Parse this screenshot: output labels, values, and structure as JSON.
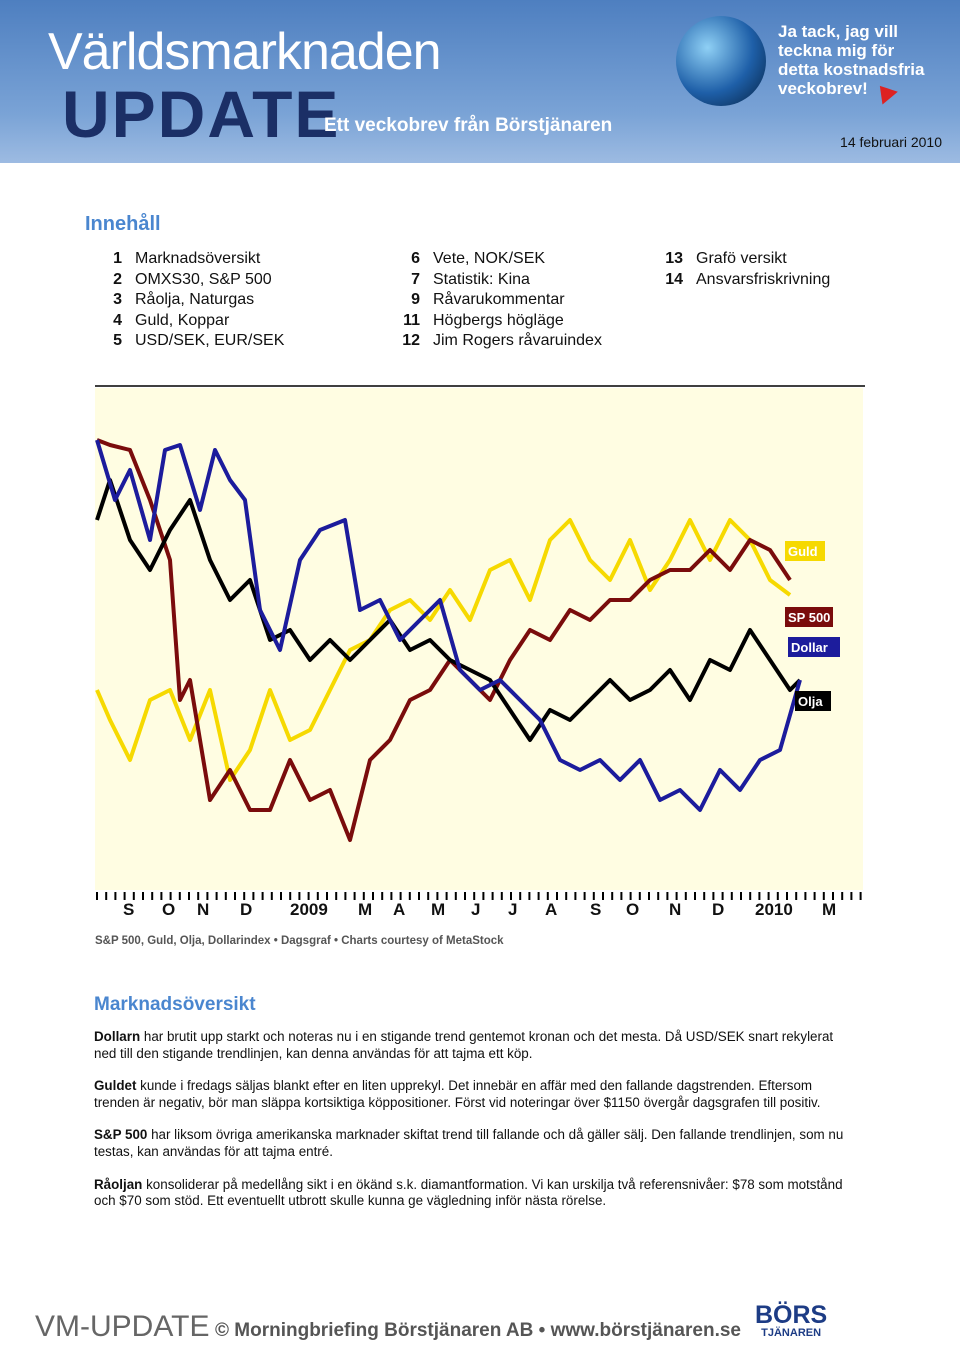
{
  "header": {
    "title": "Världsmarknaden",
    "update": "UPDATE",
    "tagline": "Ett veckobrev från Börstjänaren",
    "promo": [
      "Ja tack, jag vill",
      "teckna mig för",
      "detta kostnadsfria",
      "veckobrev!"
    ],
    "date": "14 februari 2010"
  },
  "toc": {
    "title": "Innehåll",
    "columns": [
      [
        {
          "num": 1,
          "label": "Marknadsöversikt"
        },
        {
          "num": 2,
          "label": "OMXS30, S&P 500"
        },
        {
          "num": 3,
          "label": "Råolja, Naturgas"
        },
        {
          "num": 4,
          "label": "Guld, Koppar"
        },
        {
          "num": 5,
          "label": "USD/SEK, EUR/SEK"
        }
      ],
      [
        {
          "num": 6,
          "label": "Vete, NOK/SEK"
        },
        {
          "num": 7,
          "label": "Statistik: Kina"
        },
        {
          "num": 9,
          "label": "Råvarukommentar"
        },
        {
          "num": 11,
          "label": "Högbergs högläge"
        },
        {
          "num": 12,
          "label": "Jim Rogers råvaruindex"
        }
      ],
      [
        {
          "num": 13,
          "label": "Grafö versikt"
        },
        {
          "num": 14,
          "label": "Ansvarsfriskrivning"
        }
      ]
    ]
  },
  "figure": {
    "legend": [
      "Guld",
      "SP 500",
      "Dollar",
      "Olja"
    ],
    "months": [
      "S",
      "O",
      "N",
      "D",
      "2009",
      "M",
      "A",
      "M",
      "J",
      "J",
      "A",
      "S",
      "O",
      "N",
      "D",
      "2010",
      "M"
    ],
    "caption": "S&P 500, Guld, Olja, Dollarindex • Dagsgraf • Charts courtesy of MetaStock"
  },
  "section": {
    "heading": "Marknadsöversikt",
    "paragraphs": [
      {
        "lead": "Dollarn",
        "text": "har brutit upp starkt och noteras nu i en stigande trend gentemot kronan och det mesta. Då USD/SEK snart rekylerat ned till den stigande trendlinjen, kan denna användas för att tajma ett köp."
      },
      {
        "lead": "Guldet",
        "text": "kunde i fredags säljas blankt efter en liten upprekyl. Det innebär en affär med den fallande dagstrenden. Eftersom trenden är negativ, bör man släppa kortsiktiga köppositioner. Först vid noteringar över $1150 övergår dagsgrafen till positiv."
      },
      {
        "lead": "S&P 500",
        "text": "har liksom övriga amerikanska marknader skiftat trend till fallande och då gäller sälj. Den fallande trendlinjen, som nu testas, kan användas för att tajma entré."
      },
      {
        "lead": "Råoljan",
        "text": "konsoliderar på medellång sikt i en ökänd s.k. diamantformation. Vi kan urskilja två referensnivåer: $78 som motstånd och $70 som stöd. Ett eventuellt utbrott skulle kunna ge vägledning inför nästa rörelse."
      }
    ]
  },
  "footer": {
    "brand": "VM-UPDATE",
    "copyright": "© Morningbriefing Börstjänaren AB • www.börstjänaren.se",
    "logo": [
      "BÖRS",
      "TJÄNAREN"
    ]
  }
}
